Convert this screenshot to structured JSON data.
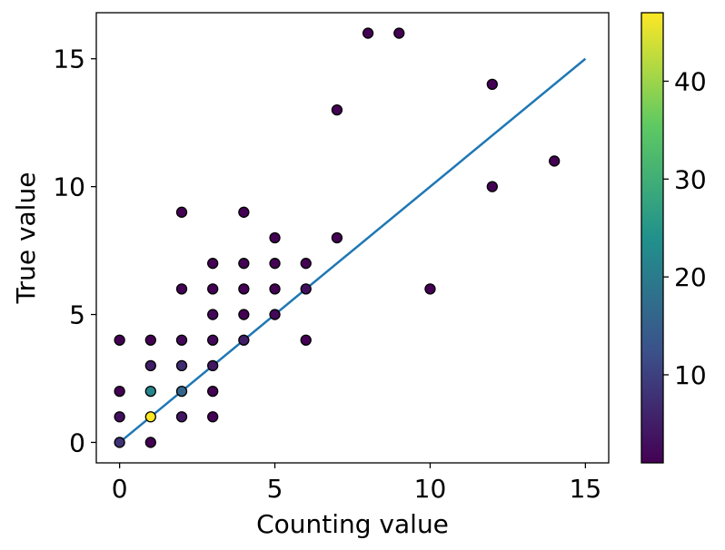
{
  "chart_data": {
    "type": "scatter",
    "title": "",
    "xlabel": "Counting value",
    "ylabel": "True value",
    "xlim": [
      -0.75,
      15.75
    ],
    "ylim": [
      -0.8,
      16.8
    ],
    "xticks": [
      0,
      5,
      10,
      15
    ],
    "yticks": [
      0,
      5,
      10,
      15
    ],
    "grid": false,
    "reference_line": {
      "x": [
        0,
        15
      ],
      "y": [
        0,
        15
      ],
      "color": "#1f77b4"
    },
    "colorbar": {
      "colormap": "viridis",
      "range": [
        1,
        47
      ],
      "ticks": [
        10,
        20,
        30,
        40
      ],
      "colors": [
        "#440154",
        "#3b528b",
        "#21918c",
        "#5ec962",
        "#fde725"
      ]
    },
    "points": [
      {
        "x": 0,
        "y": 4,
        "c": 1
      },
      {
        "x": 0,
        "y": 2,
        "c": 1
      },
      {
        "x": 0,
        "y": 1,
        "c": 3
      },
      {
        "x": 0,
        "y": 0,
        "c": 8
      },
      {
        "x": 1,
        "y": 4,
        "c": 1
      },
      {
        "x": 1,
        "y": 3,
        "c": 5
      },
      {
        "x": 1,
        "y": 2,
        "c": 22
      },
      {
        "x": 1,
        "y": 1,
        "c": 47
      },
      {
        "x": 1,
        "y": 0,
        "c": 1
      },
      {
        "x": 2,
        "y": 9,
        "c": 1
      },
      {
        "x": 2,
        "y": 6,
        "c": 1
      },
      {
        "x": 2,
        "y": 4,
        "c": 2
      },
      {
        "x": 2,
        "y": 3,
        "c": 7
      },
      {
        "x": 2,
        "y": 2,
        "c": 16
      },
      {
        "x": 2,
        "y": 1,
        "c": 4
      },
      {
        "x": 3,
        "y": 7,
        "c": 1
      },
      {
        "x": 3,
        "y": 6,
        "c": 1
      },
      {
        "x": 3,
        "y": 5,
        "c": 2
      },
      {
        "x": 3,
        "y": 4,
        "c": 2
      },
      {
        "x": 3,
        "y": 3,
        "c": 4
      },
      {
        "x": 3,
        "y": 2,
        "c": 1
      },
      {
        "x": 3,
        "y": 1,
        "c": 1
      },
      {
        "x": 4,
        "y": 9,
        "c": 1
      },
      {
        "x": 4,
        "y": 7,
        "c": 1
      },
      {
        "x": 4,
        "y": 6,
        "c": 1
      },
      {
        "x": 4,
        "y": 5,
        "c": 1
      },
      {
        "x": 4,
        "y": 4,
        "c": 5
      },
      {
        "x": 5,
        "y": 8,
        "c": 1
      },
      {
        "x": 5,
        "y": 7,
        "c": 1
      },
      {
        "x": 5,
        "y": 6,
        "c": 1
      },
      {
        "x": 5,
        "y": 5,
        "c": 2
      },
      {
        "x": 6,
        "y": 7,
        "c": 1
      },
      {
        "x": 6,
        "y": 6,
        "c": 3
      },
      {
        "x": 6,
        "y": 4,
        "c": 1
      },
      {
        "x": 7,
        "y": 13,
        "c": 1
      },
      {
        "x": 7,
        "y": 8,
        "c": 1
      },
      {
        "x": 8,
        "y": 16,
        "c": 1
      },
      {
        "x": 9,
        "y": 16,
        "c": 1
      },
      {
        "x": 10,
        "y": 6,
        "c": 1
      },
      {
        "x": 12,
        "y": 14,
        "c": 1
      },
      {
        "x": 12,
        "y": 10,
        "c": 1
      },
      {
        "x": 14,
        "y": 11,
        "c": 1
      }
    ]
  }
}
